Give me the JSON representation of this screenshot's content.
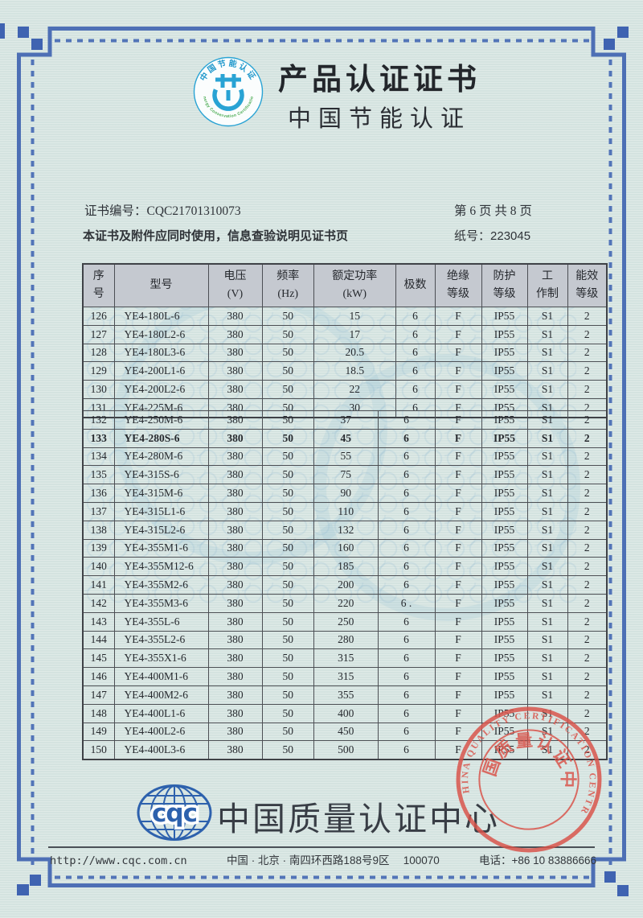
{
  "colors": {
    "page_background": "#d9e6e3",
    "frame_blue": "#4d6fb5",
    "corner_square_blue": "#3f63b1",
    "stamp_red": "#d9544b",
    "cqc_logo_blue": "#2d61ad",
    "energy_logo_cyan": "#29a3d4",
    "energy_logo_green": "#44a84c",
    "table_header_bg": "#c5c9d0"
  },
  "header": {
    "title": "产品认证证书",
    "subtitle": "中国节能认证",
    "logo": {
      "arc_top": "中国节能认证",
      "arc_bottom": "Energy Conservation Certification"
    }
  },
  "cert_info": {
    "number_label": "证书编号：",
    "number": "CQC21701310073",
    "page_info": "第 6 页  共 8 页",
    "usage_note": "本证书及附件应同时使用，信息查验说明见证书页",
    "paper_label": "纸号：",
    "paper_number": "223045"
  },
  "table": {
    "headers": [
      {
        "lines": [
          "序",
          "号"
        ]
      },
      {
        "lines": [
          "型号"
        ]
      },
      {
        "lines": [
          "电压",
          "(V)"
        ]
      },
      {
        "lines": [
          "频率",
          "(Hz)"
        ]
      },
      {
        "lines": [
          "额定功率",
          "(kW)"
        ]
      },
      {
        "lines": [
          "极数"
        ]
      },
      {
        "lines": [
          "绝缘",
          "等级"
        ]
      },
      {
        "lines": [
          "防护",
          "等级"
        ]
      },
      {
        "lines": [
          "工",
          "作制"
        ]
      },
      {
        "lines": [
          "能效",
          "等级"
        ]
      }
    ],
    "bold_serial": "133",
    "rows": [
      [
        "126",
        "YE4-180L-6",
        "380",
        "50",
        "15",
        "6",
        "F",
        "IP55",
        "S1",
        "2"
      ],
      [
        "127",
        "YE4-180L2-6",
        "380",
        "50",
        "17",
        "6",
        "F",
        "IP55",
        "S1",
        "2"
      ],
      [
        "128",
        "YE4-180L3-6",
        "380",
        "50",
        "20.5",
        "6",
        "F",
        "IP55",
        "S1",
        "2"
      ],
      [
        "129",
        "YE4-200L1-6",
        "380",
        "50",
        "18.5",
        "6",
        "F",
        "IP55",
        "S1",
        "2"
      ],
      [
        "130",
        "YE4-200L2-6",
        "380",
        "50",
        "22",
        "6",
        "F",
        "IP55",
        "S1",
        "2"
      ],
      [
        "131",
        "YE4-225M-6",
        "380",
        "50",
        "30",
        "6",
        "F",
        "IP55",
        "S1",
        "2"
      ],
      [
        "132",
        "YE4-250M-6",
        "380",
        "50",
        "37",
        "6",
        "F",
        "IP55",
        "S1",
        "2"
      ],
      [
        "133",
        "YE4-280S-6",
        "380",
        "50",
        "45",
        "6",
        "F",
        "IP55",
        "S1",
        "2"
      ],
      [
        "134",
        "YE4-280M-6",
        "380",
        "50",
        "55",
        "6",
        "F",
        "IP55",
        "S1",
        "2"
      ],
      [
        "135",
        "YE4-315S-6",
        "380",
        "50",
        "75",
        "6",
        "F",
        "IP55",
        "S1",
        "2"
      ],
      [
        "136",
        "YE4-315M-6",
        "380",
        "50",
        "90",
        "6",
        "F",
        "IP55",
        "S1",
        "2"
      ],
      [
        "137",
        "YE4-315L1-6",
        "380",
        "50",
        "110",
        "6",
        "F",
        "IP55",
        "S1",
        "2"
      ],
      [
        "138",
        "YE4-315L2-6",
        "380",
        "50",
        "132",
        "6",
        "F",
        "IP55",
        "S1",
        "2"
      ],
      [
        "139",
        "YE4-355M1-6",
        "380",
        "50",
        "160",
        "6",
        "F",
        "IP55",
        "S1",
        "2"
      ],
      [
        "140",
        "YE4-355M12-6",
        "380",
        "50",
        "185",
        "6",
        "F",
        "IP55",
        "S1",
        "2"
      ],
      [
        "141",
        "YE4-355M2-6",
        "380",
        "50",
        "200",
        "6",
        "F",
        "IP55",
        "S1",
        "2"
      ],
      [
        "142",
        "YE4-355M3-6",
        "380",
        "50",
        "220",
        "6 .",
        "F",
        "IP55",
        "S1",
        "2"
      ],
      [
        "143",
        "YE4-355L-6",
        "380",
        "50",
        "250",
        "6",
        "F",
        "IP55",
        "S1",
        "2"
      ],
      [
        "144",
        "YE4-355L2-6",
        "380",
        "50",
        "280",
        "6",
        "F",
        "IP55",
        "S1",
        "2"
      ],
      [
        "145",
        "YE4-355X1-6",
        "380",
        "50",
        "315",
        "6",
        "F",
        "IP55",
        "S1",
        "2"
      ],
      [
        "146",
        "YE4-400M1-6",
        "380",
        "50",
        "315",
        "6",
        "F",
        "IP55",
        "S1",
        "2"
      ],
      [
        "147",
        "YE4-400M2-6",
        "380",
        "50",
        "355",
        "6",
        "F",
        "IP55",
        "S1",
        "2"
      ],
      [
        "148",
        "YE4-400L1-6",
        "380",
        "50",
        "400",
        "6",
        "F",
        "IP55",
        "S1",
        "2"
      ],
      [
        "149",
        "YE4-400L2-6",
        "380",
        "50",
        "450",
        "6",
        "F",
        "IP55",
        "S1",
        "2"
      ],
      [
        "150",
        "YE4-400L3-6",
        "380",
        "50",
        "500",
        "6",
        "F",
        "IP55",
        "S1",
        "2"
      ]
    ]
  },
  "stamp": {
    "outer_text": "CHINA QUALITY CERTIFICATION CENTRE",
    "inner_text": "中国质量认证中心"
  },
  "footer": {
    "logo_text": "cqc",
    "org_name": "中国质量认证中心"
  },
  "bottom_bar": {
    "url": "http://www.cqc.com.cn",
    "address": "中国 · 北京 · 南四环西路188号9区　 100070",
    "phone": "电话：+86 10 83886666"
  }
}
